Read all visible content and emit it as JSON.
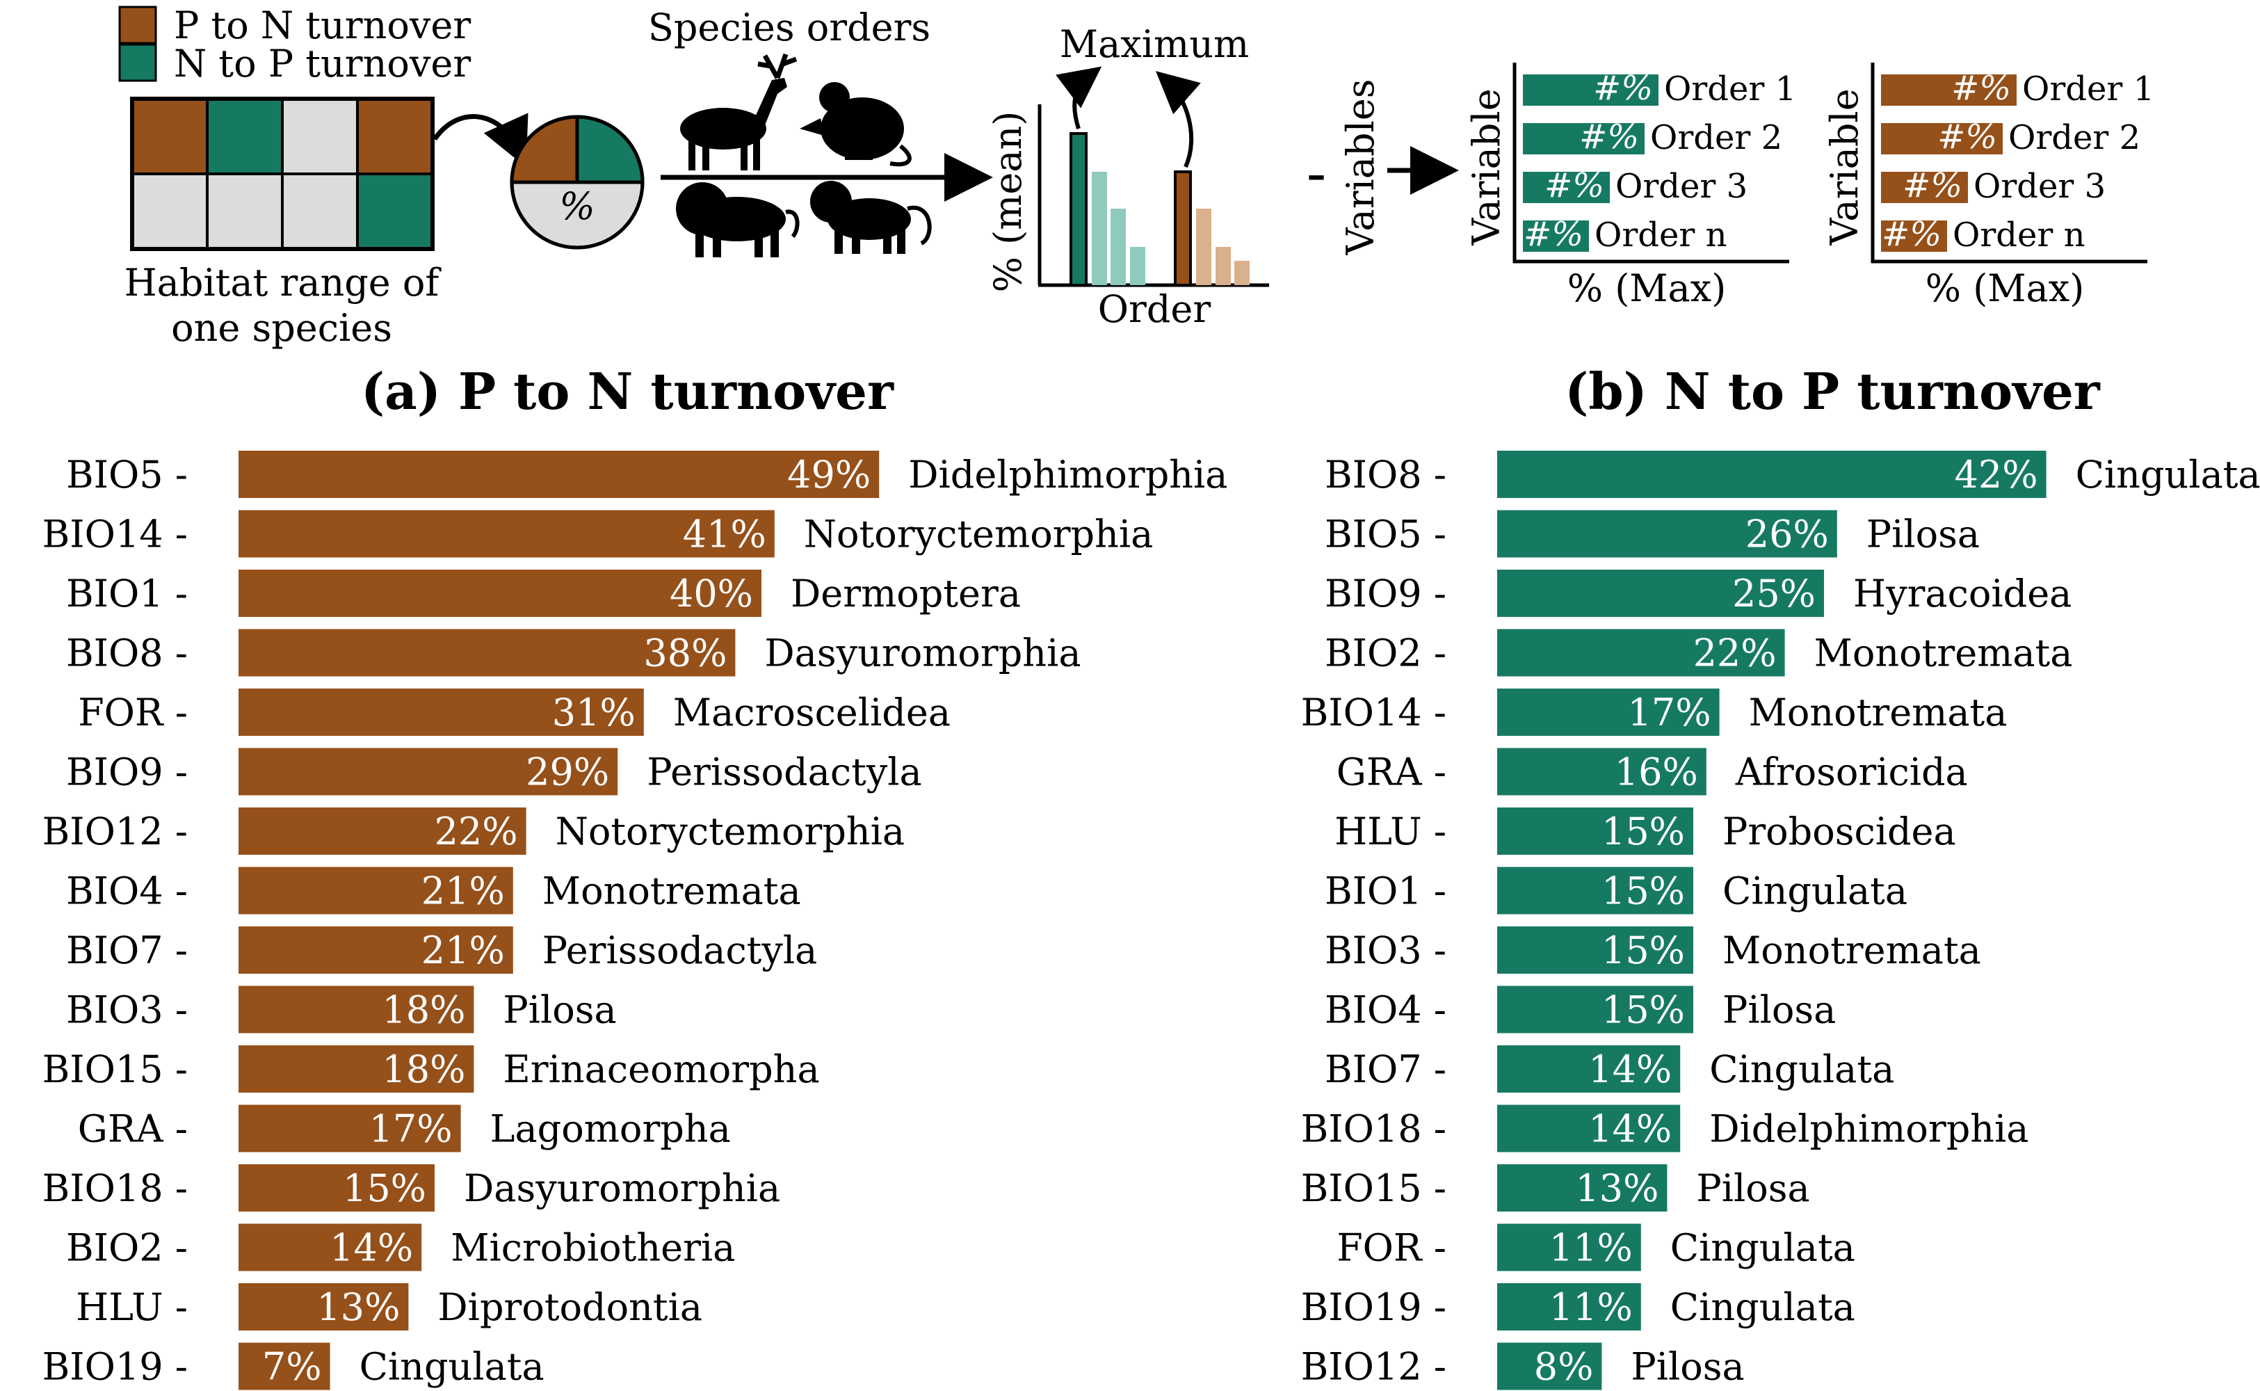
{
  "colors": {
    "p_to_n": "#96501a",
    "n_to_p": "#167a63",
    "grid_empty": "#dcdcdc",
    "teal_light": "#8fcbbd",
    "brown_light": "#d9b18c"
  },
  "schematic": {
    "legend": [
      "P to N turnover",
      "N to P turnover"
    ],
    "habitat_caption": [
      "Habitat range of",
      "one species"
    ],
    "pie_label": "%",
    "species_orders_title": "Species orders",
    "animal_icons": [
      "deer-icon",
      "mouse-icon",
      "lion-icon",
      "monkey-icon"
    ],
    "mini_chart": {
      "ylabel": "% (mean)",
      "xlabel": "Order",
      "title": "Maximum"
    },
    "minus": "–",
    "variables_label": "Variables",
    "mini_bars_left": {
      "ylabel": "Variable",
      "xlabel": "% (Max)",
      "rows": [
        {
          "value": "#%",
          "order": "Order 1"
        },
        {
          "value": "#%",
          "order": "Order 2"
        },
        {
          "value": "#%",
          "order": "Order 3"
        },
        {
          "value": "#%",
          "order": "Order n"
        }
      ]
    },
    "mini_bars_right": {
      "ylabel": "Variable",
      "xlabel": "% (Max)",
      "rows": [
        {
          "value": "#%",
          "order": "Order 1"
        },
        {
          "value": "#%",
          "order": "Order 2"
        },
        {
          "value": "#%",
          "order": "Order 3"
        },
        {
          "value": "#%",
          "order": "Order n"
        }
      ]
    }
  },
  "chart_data": [
    {
      "type": "bar",
      "orientation": "horizontal",
      "title": "(a) P to N turnover",
      "color": "#96501a",
      "categories": [
        "BIO5",
        "BIO14",
        "BIO1",
        "BIO8",
        "FOR",
        "BIO9",
        "BIO12",
        "BIO4",
        "BIO7",
        "BIO3",
        "BIO15",
        "GRA",
        "BIO18",
        "BIO2",
        "HLU",
        "BIO19"
      ],
      "values": [
        49,
        41,
        40,
        38,
        31,
        29,
        22,
        21,
        21,
        18,
        18,
        17,
        15,
        14,
        13,
        7
      ],
      "value_labels": [
        "49%",
        "41%",
        "40%",
        "38%",
        "31%",
        "29%",
        "22%",
        "21%",
        "21%",
        "18%",
        "18%",
        "17%",
        "15%",
        "14%",
        "13%",
        "7%"
      ],
      "orders": [
        "Didelphimorphia",
        "Notoryctemorphia",
        "Dermoptera",
        "Dasyuromorphia",
        "Macroscelidea",
        "Perissodactyla",
        "Notoryctemorphia",
        "Monotremata",
        "Perissodactyla",
        "Pilosa",
        "Erinaceomorpha",
        "Lagomorpha",
        "Dasyuromorphia",
        "Microbiotheria",
        "Diprotodontia",
        "Cingulata"
      ]
    },
    {
      "type": "bar",
      "orientation": "horizontal",
      "title": "(b) N to P turnover",
      "color": "#167a63",
      "categories": [
        "BIO8",
        "BIO5",
        "BIO9",
        "BIO2",
        "BIO14",
        "GRA",
        "HLU",
        "BIO1",
        "BIO3",
        "BIO4",
        "BIO7",
        "BIO18",
        "BIO15",
        "FOR",
        "BIO19",
        "BIO12"
      ],
      "values": [
        42,
        26,
        25,
        22,
        17,
        16,
        15,
        15,
        15,
        15,
        14,
        14,
        13,
        11,
        11,
        8
      ],
      "value_labels": [
        "42%",
        "26%",
        "25%",
        "22%",
        "17%",
        "16%",
        "15%",
        "15%",
        "15%",
        "15%",
        "14%",
        "14%",
        "13%",
        "11%",
        "11%",
        "8%"
      ],
      "orders": [
        "Cingulata",
        "Pilosa",
        "Hyracoidea",
        "Monotremata",
        "Monotremata",
        "Afrosoricida",
        "Proboscidea",
        "Cingulata",
        "Monotremata",
        "Pilosa",
        "Cingulata",
        "Didelphimorphia",
        "Pilosa",
        "Cingulata",
        "Cingulata",
        "Pilosa"
      ]
    }
  ]
}
